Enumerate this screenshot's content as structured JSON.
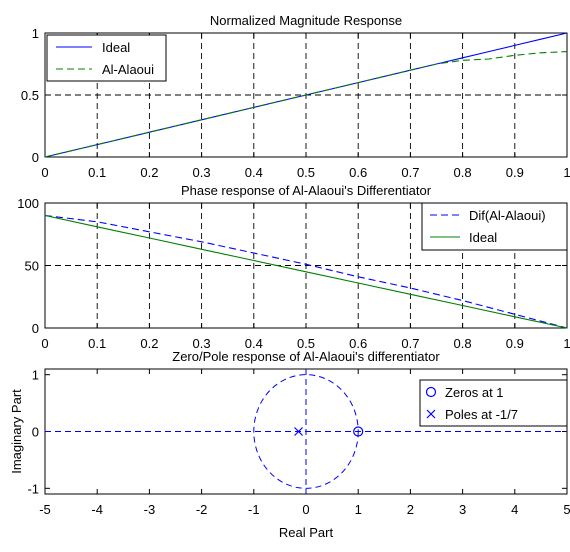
{
  "chart_data": [
    {
      "type": "line",
      "title": "Normalized Magnitude Response",
      "xlabel": "",
      "ylabel": "",
      "xlim": [
        0,
        1
      ],
      "ylim": [
        0,
        1
      ],
      "xticks": [
        "0",
        "0.1",
        "0.2",
        "0.3",
        "0.4",
        "0.5",
        "0.6",
        "0.7",
        "0.8",
        "0.9",
        "1"
      ],
      "yticks": [
        "0",
        "0.5",
        "1"
      ],
      "grid": true,
      "legend_position": "top-left",
      "x": [
        0,
        0.1,
        0.2,
        0.3,
        0.4,
        0.5,
        0.6,
        0.7,
        0.75,
        0.8,
        0.85,
        0.9,
        0.95,
        1.0
      ],
      "series": [
        {
          "name": "Ideal",
          "style": "solid",
          "color": "#0000ff",
          "values": [
            0,
            0.1,
            0.2,
            0.3,
            0.4,
            0.5,
            0.6,
            0.7,
            0.75,
            0.8,
            0.85,
            0.9,
            0.95,
            1.0
          ]
        },
        {
          "name": "Al-Alaoui",
          "style": "dashed",
          "color": "#008000",
          "values": [
            0,
            0.1,
            0.2,
            0.3,
            0.4,
            0.5,
            0.6,
            0.7,
            0.75,
            0.78,
            0.79,
            0.82,
            0.84,
            0.85
          ]
        }
      ]
    },
    {
      "type": "line",
      "title": "Phase response of Al-Alaoui's Differentiator",
      "xlabel": "",
      "ylabel": "",
      "xlim": [
        0,
        1
      ],
      "ylim": [
        0,
        100
      ],
      "xticks": [
        "0",
        "0.1",
        "0.2",
        "0.3",
        "0.4",
        "0.5",
        "0.6",
        "0.7",
        "0.8",
        "0.9",
        "1"
      ],
      "yticks": [
        "0",
        "50",
        "100"
      ],
      "grid": true,
      "legend_position": "top-right",
      "x": [
        0,
        0.1,
        0.2,
        0.3,
        0.4,
        0.5,
        0.6,
        0.7,
        0.8,
        0.9,
        1.0
      ],
      "series": [
        {
          "name": "Dif(Al-Alaoui)",
          "style": "dashed",
          "color": "#0000ff",
          "values": [
            90,
            85,
            77,
            69,
            60,
            51,
            41,
            32,
            22,
            11,
            0
          ]
        },
        {
          "name": "Ideal",
          "style": "solid",
          "color": "#008000",
          "values": [
            90,
            81,
            72,
            63,
            54,
            45,
            36,
            27,
            18,
            9,
            0
          ]
        }
      ]
    },
    {
      "type": "scatter",
      "title": "Zero/Pole response of Al-Alaoui's differentiator",
      "xlabel": "Real Part",
      "ylabel": "Imaginary Part",
      "xlim": [
        -5,
        5
      ],
      "ylim": [
        -1.1,
        1.1
      ],
      "xticks": [
        "-5",
        "-4",
        "-3",
        "-2",
        "-1",
        "0",
        "1",
        "2",
        "3",
        "4",
        "5"
      ],
      "yticks": [
        "-1",
        "0",
        "1"
      ],
      "grid": false,
      "legend_position": "top-right",
      "unit_circle": true,
      "series": [
        {
          "name": "Zeros at 1",
          "marker": "circle",
          "color": "#0000ff",
          "points": [
            [
              1,
              0
            ]
          ]
        },
        {
          "name": "Poles at -1/7",
          "marker": "x",
          "color": "#0000ff",
          "points": [
            [
              -0.142857,
              0
            ]
          ]
        }
      ]
    }
  ]
}
